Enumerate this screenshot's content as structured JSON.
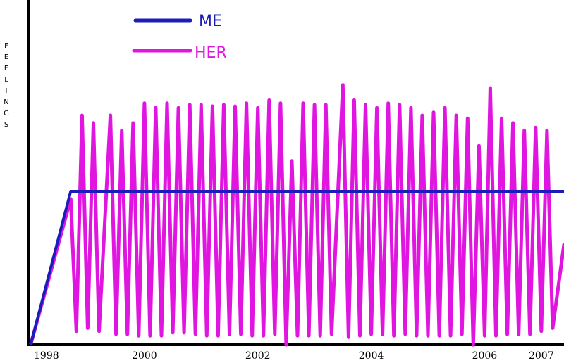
{
  "chart_data": {
    "type": "line",
    "title": "",
    "ylabel": "FEELINGS",
    "xlabel": "",
    "x_ticks": [
      "1998",
      "2000",
      "2002",
      "2004",
      "2006",
      "2007"
    ],
    "x_tick_values": [
      1998,
      2000,
      2002,
      2004,
      2006,
      2007
    ],
    "xlim": [
      1998,
      2007.4
    ],
    "ylim": [
      0,
      100
    ],
    "grid": false,
    "legend_position": "top-left",
    "series": [
      {
        "name": "ME",
        "color": "#1c1cb8",
        "points": [
          [
            1998.0,
            0
          ],
          [
            1998.7,
            100
          ],
          [
            2007.4,
            100
          ]
        ]
      },
      {
        "name": "HER",
        "color": "#e015e0",
        "points": [
          [
            1998.0,
            0
          ],
          [
            1998.7,
            95
          ],
          [
            1998.8,
            8
          ],
          [
            1998.9,
            150
          ],
          [
            1999.0,
            10
          ],
          [
            1999.1,
            145
          ],
          [
            1999.2,
            8
          ],
          [
            1999.4,
            150
          ],
          [
            1999.5,
            6
          ],
          [
            1999.6,
            140
          ],
          [
            1999.7,
            6
          ],
          [
            1999.8,
            145
          ],
          [
            1999.9,
            5
          ],
          [
            2000.0,
            158
          ],
          [
            2000.1,
            5
          ],
          [
            2000.2,
            155
          ],
          [
            2000.3,
            5
          ],
          [
            2000.4,
            158
          ],
          [
            2000.5,
            7
          ],
          [
            2000.6,
            155
          ],
          [
            2000.7,
            7
          ],
          [
            2000.8,
            157
          ],
          [
            2000.9,
            6
          ],
          [
            2001.0,
            157
          ],
          [
            2001.1,
            5
          ],
          [
            2001.2,
            156
          ],
          [
            2001.3,
            5
          ],
          [
            2001.4,
            157
          ],
          [
            2001.5,
            6
          ],
          [
            2001.6,
            156
          ],
          [
            2001.7,
            6
          ],
          [
            2001.8,
            158
          ],
          [
            2001.9,
            5
          ],
          [
            2002.0,
            155
          ],
          [
            2002.1,
            5
          ],
          [
            2002.2,
            160
          ],
          [
            2002.3,
            6
          ],
          [
            2002.4,
            158
          ],
          [
            2002.5,
            -1
          ],
          [
            2002.6,
            120
          ],
          [
            2002.7,
            5
          ],
          [
            2002.8,
            158
          ],
          [
            2002.9,
            5
          ],
          [
            2003.0,
            157
          ],
          [
            2003.1,
            5
          ],
          [
            2003.2,
            157
          ],
          [
            2003.3,
            6
          ],
          [
            2003.5,
            170
          ],
          [
            2003.6,
            4
          ],
          [
            2003.7,
            160
          ],
          [
            2003.8,
            5
          ],
          [
            2003.9,
            157
          ],
          [
            2004.0,
            6
          ],
          [
            2004.1,
            155
          ],
          [
            2004.2,
            6
          ],
          [
            2004.3,
            158
          ],
          [
            2004.4,
            5
          ],
          [
            2004.5,
            157
          ],
          [
            2004.6,
            6
          ],
          [
            2004.7,
            155
          ],
          [
            2004.8,
            5
          ],
          [
            2004.9,
            150
          ],
          [
            2005.0,
            5
          ],
          [
            2005.1,
            152
          ],
          [
            2005.2,
            5
          ],
          [
            2005.3,
            155
          ],
          [
            2005.4,
            5
          ],
          [
            2005.5,
            150
          ],
          [
            2005.6,
            6
          ],
          [
            2005.7,
            148
          ],
          [
            2005.8,
            -1
          ],
          [
            2005.9,
            130
          ],
          [
            2006.0,
            5
          ],
          [
            2006.1,
            168
          ],
          [
            2006.2,
            5
          ],
          [
            2006.3,
            148
          ],
          [
            2006.4,
            6
          ],
          [
            2006.5,
            145
          ],
          [
            2006.6,
            6
          ],
          [
            2006.7,
            140
          ],
          [
            2006.8,
            6
          ],
          [
            2006.9,
            142
          ],
          [
            2007.0,
            8
          ],
          [
            2007.1,
            140
          ],
          [
            2007.2,
            10
          ],
          [
            2007.4,
            65
          ]
        ]
      }
    ]
  }
}
